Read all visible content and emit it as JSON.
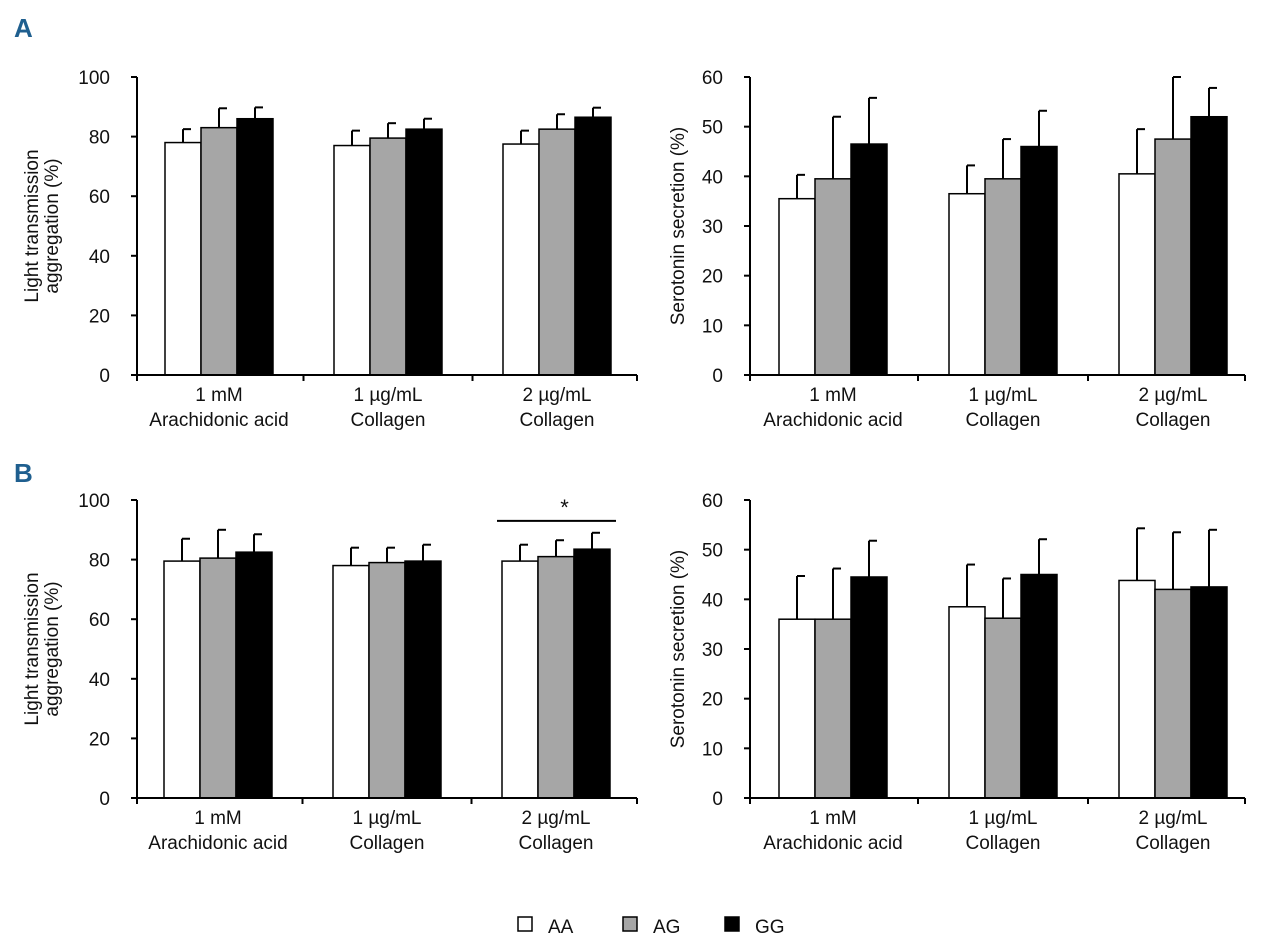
{
  "legend": {
    "items": [
      {
        "name": "AA",
        "color": "#ffffff"
      },
      {
        "name": "AG",
        "color": "#a6a6a6"
      },
      {
        "name": "GG",
        "color": "#000000"
      }
    ]
  },
  "chart_data": [
    {
      "panel": "A",
      "type": "bar",
      "ylabel": [
        "Light transmission",
        "aggregation (%)"
      ],
      "ylim": [
        0,
        100
      ],
      "yticks": [
        0,
        20,
        40,
        60,
        80,
        100
      ],
      "categories": [
        [
          "1 mM",
          "Arachidonic acid"
        ],
        [
          "1 µg/mL",
          "Collagen"
        ],
        [
          "2 µg/mL",
          "Collagen"
        ]
      ],
      "series": [
        {
          "name": "AA",
          "values": [
            78,
            77,
            77.5
          ],
          "errors": [
            4.5,
            5,
            4.5
          ]
        },
        {
          "name": "AG",
          "values": [
            83,
            79.5,
            82.5
          ],
          "errors": [
            6.5,
            5,
            5
          ]
        },
        {
          "name": "GG",
          "values": [
            86,
            82.5,
            86.5
          ],
          "errors": [
            3.8,
            3.5,
            3.2
          ]
        }
      ],
      "significance": []
    },
    {
      "panel": "",
      "type": "bar",
      "ylabel": [
        "Serotonin secretion (%)"
      ],
      "ylim": [
        0,
        60
      ],
      "yticks": [
        0,
        10,
        20,
        30,
        40,
        50,
        60
      ],
      "categories": [
        [
          "1 mM",
          "Arachidonic acid"
        ],
        [
          "1 µg/mL",
          "Collagen"
        ],
        [
          "2 µg/mL",
          "Collagen"
        ]
      ],
      "series": [
        {
          "name": "AA",
          "values": [
            35.5,
            36.5,
            40.5
          ],
          "errors": [
            4.8,
            5.7,
            9
          ]
        },
        {
          "name": "AG",
          "values": [
            39.5,
            39.5,
            47.5
          ],
          "errors": [
            12.5,
            8,
            12.5
          ]
        },
        {
          "name": "GG",
          "values": [
            46.5,
            46,
            52
          ],
          "errors": [
            9.3,
            7.2,
            5.8
          ]
        }
      ],
      "significance": []
    },
    {
      "panel": "B",
      "type": "bar",
      "ylabel": [
        "Light transmission",
        "aggregation (%)"
      ],
      "ylim": [
        0,
        100
      ],
      "yticks": [
        0,
        20,
        40,
        60,
        80,
        100
      ],
      "categories": [
        [
          "1 mM",
          "Arachidonic acid"
        ],
        [
          "1 µg/mL",
          "Collagen"
        ],
        [
          "2 µg/mL",
          "Collagen"
        ]
      ],
      "series": [
        {
          "name": "AA",
          "values": [
            79.5,
            78,
            79.5
          ],
          "errors": [
            7.5,
            6,
            5.5
          ]
        },
        {
          "name": "AG",
          "values": [
            80.5,
            79,
            81
          ],
          "errors": [
            9.5,
            5,
            5.5
          ]
        },
        {
          "name": "GG",
          "values": [
            82.5,
            79.5,
            83.5
          ],
          "errors": [
            6,
            5.5,
            5.5
          ]
        }
      ],
      "significance": [
        {
          "category": 2,
          "from": "AA",
          "to": "GG",
          "label": "*",
          "level": 93
        }
      ]
    },
    {
      "panel": "",
      "type": "bar",
      "ylabel": [
        "Serotonin secretion (%)"
      ],
      "ylim": [
        0,
        60
      ],
      "yticks": [
        0,
        10,
        20,
        30,
        40,
        50,
        60
      ],
      "categories": [
        [
          "1 mM",
          "Arachidonic acid"
        ],
        [
          "1 µg/mL",
          "Collagen"
        ],
        [
          "2 µg/mL",
          "Collagen"
        ]
      ],
      "series": [
        {
          "name": "AA",
          "values": [
            36,
            38.5,
            43.8
          ],
          "errors": [
            8.7,
            8.5,
            10.5
          ]
        },
        {
          "name": "AG",
          "values": [
            36,
            36.2,
            42
          ],
          "errors": [
            10.2,
            8,
            11.5
          ]
        },
        {
          "name": "GG",
          "values": [
            44.5,
            45,
            42.5
          ],
          "errors": [
            7.3,
            7.1,
            11.5
          ]
        }
      ],
      "significance": []
    }
  ]
}
